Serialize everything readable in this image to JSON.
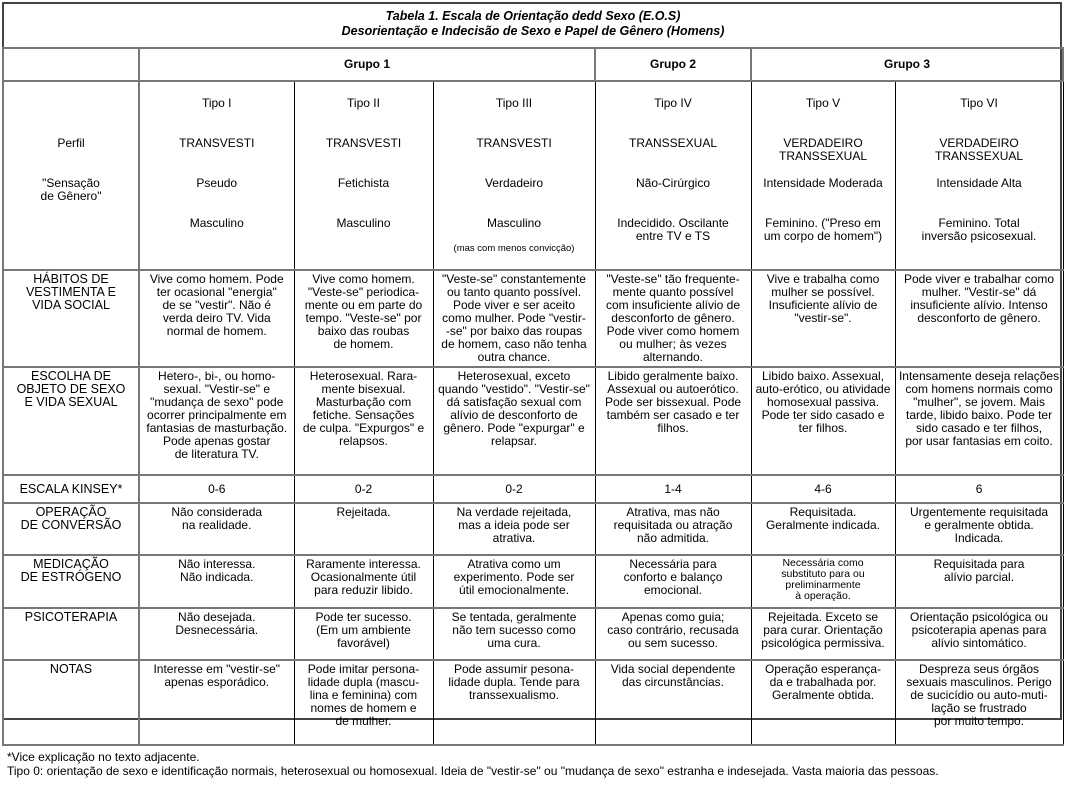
{
  "title": {
    "line1": "Tabela 1. Escala de Orientação dedd Sexo (E.O.S)",
    "line2": "Desorientação e Indecisão de Sexo e Papel de Gênero (Homens)"
  },
  "groups": [
    "Grupo 1",
    "Grupo 2",
    "Grupo 3"
  ],
  "profile": {
    "label1": "Perfil",
    "label2": "\"Sensação\nde Gênero\"",
    "types": [
      {
        "tipo": "Tipo I",
        "name": "TRANSVESTI",
        "sub": "Pseudo",
        "gender": "Masculino",
        "note": ""
      },
      {
        "tipo": "Tipo II",
        "name": "TRANSVESTI",
        "sub": "Fetichista",
        "gender": "Masculino",
        "note": ""
      },
      {
        "tipo": "Tipo III",
        "name": "TRANSVESTI",
        "sub": "Verdadeiro",
        "gender": "Masculino",
        "note": "(mas com menos convicção)"
      },
      {
        "tipo": "Tipo IV",
        "name": "TRANSSEXUAL",
        "sub": "Não-Cirúrgico",
        "gender": "Indecidido. Oscilante\nentre TV e TS",
        "note": ""
      },
      {
        "tipo": "Tipo V",
        "name": "VERDADEIRO\nTRANSSEXUAL",
        "sub": "Intensidade Moderada",
        "gender": "Feminino. (\"Preso em\num corpo de homem\")",
        "note": ""
      },
      {
        "tipo": "Tipo VI",
        "name": "VERDADEIRO\nTRANSSEXUAL",
        "sub": "Intensidade Alta",
        "gender": "Feminino. Total\ninversão psicosexual.",
        "note": ""
      }
    ]
  },
  "rows": [
    {
      "label": "HÁBITOS DE\nVESTIMENTA E\nVIDA SOCIAL",
      "cells": [
        "Vive como homem. Pode\nter ocasional \"energia\"\nde se \"vestir\". Não é\nverda deiro TV. Vida\nnormal de homem.",
        "Vive como homem.\n\"Veste-se\" periodica-\nmente ou em parte do\ntempo. \"Veste-se\" por\nbaixo das roubas\nde homem.",
        "\"Veste-se\" constantemente\nou tanto quanto possível.\nPode viver e ser aceito\ncomo mulher. Pode \"vestir-\n-se\" por baixo das roupas\nde homem, caso não tenha\noutra chance.",
        "\"Veste-se\" tão frequente-\nmente quanto possível\ncom insuficiente alívio de\ndesconforto de gênero.\nPode viver como homem\nou mulher; às vezes\nalternando.",
        "Vive e trabalha como\nmulher se possível.\nInsuficiente alívio de\n\"vestir-se\".",
        "Pode viver e trabalhar como\nmulher. \"Vestir-se\" dá\ninsuficiente alívio. Intenso\ndesconforto de gênero."
      ]
    },
    {
      "label": "ESCOLHA DE\nOBJETO DE SEXO\nE VIDA SEXUAL",
      "cells": [
        "Hetero-, bi-, ou homo-\nsexual. \"Vestir-se\" e\n\"mudança de sexo\" pode\nocorrer principalmente em\nfantasias de masturbação.\nPode apenas gostar\nde literatura TV.",
        "Heterosexual. Rara-\nmente bisexual.\nMasturbação com\nfetiche. Sensações\nde culpa. \"Expurgos\" e\nrelapsos.",
        "Heterosexual, exceto\nquando \"vestido\". \"Vestir-se\"\ndá satisfação sexual com\nalívio de desconforto de\ngênero. Pode \"expurgar\" e\nrelapsar.",
        "Libido geralmente baixo.\nAssexual ou autoerótico.\nPode ser bissexual. Pode\ntambém ser casado e ter\nfilhos.",
        "Libido baixo. Assexual,\nauto-erótico, ou atividade\nhomosexual passiva.\nPode ter sido casado e\nter filhos.",
        "Intensamente deseja relações\ncom homens normais como\n\"mulher\", se jovem. Mais\ntarde, libido baixo. Pode ter\nsido casado e ter filhos,\npor usar fantasias em coito."
      ]
    },
    {
      "label": "ESCALA KINSEY*",
      "cells": [
        "0-6",
        "0-2",
        "0-2",
        "1-4",
        "4-6",
        "6"
      ]
    },
    {
      "label": "OPERAÇÃO\nDE CONVERSÃO",
      "cells": [
        "Não considerada\nna realidade.",
        "Rejeitada.",
        "Na verdade rejeitada,\nmas a ideia pode ser\natrativa.",
        "Atrativa, mas não\nrequisitada ou atração\nnão admitida.",
        "Requisitada.\nGeralmente indicada.",
        "Urgentemente requisitada\ne geralmente obtida.\nIndicada."
      ]
    },
    {
      "label": "MEDICAÇÃO\nDE ESTRÓGENO",
      "cells": [
        "Não interessa.\nNão indicada.",
        "Raramente interessa.\nOcasionalmente útil\npara reduzir libido.",
        "Atrativa como um\nexperimento. Pode ser\nútil emocionalmente.",
        "Necessária para\nconforto e balanço\nemocional.",
        "Necessária como\nsubstituto para ou\npreliminarmente\nà operação.",
        "Requisitada para\nalívio parcial."
      ]
    },
    {
      "label": "PSICOTERAPIA",
      "cells": [
        "Não desejada.\nDesnecessária.",
        "Pode ter sucesso.\n(Em um ambiente\nfavorável)",
        "Se tentada, geralmente\nnão tem sucesso como\numa cura.",
        "Apenas como guia;\ncaso contrário, recusada\nou sem sucesso.",
        "Rejeitada. Exceto se\npara curar. Orientação\npsicológica permissiva.",
        "Orientação psicológica ou\npsicoterapia apenas para\nalívio sintomático."
      ]
    },
    {
      "label": "NOTAS",
      "cells": [
        "Interesse em \"vestir-se\"\napenas esporádico.",
        "Pode imitar persona-\nlidade dupla (mascu-\nlina e feminina) com\nnomes de homem e\nde mulher.",
        "Pode assumir pesona-\nlidade dupla. Tende para\ntranssexualismo.",
        "Vida social dependente\ndas circunstâncias.",
        "Operação esperança-\nda e trabalhada por.\nGeralmente obtida.",
        "Despreza seus órgãos\nsexuais masculinos. Perigo\nde sucicídio ou auto-muti-\nlação se frustrado\npor muito tempo."
      ]
    }
  ],
  "footnotes": [
    "*Vice explicação no texto adjacente.",
    "Tipo 0: orientação de sexo e identificação normais, heterosexual ou homosexual. Ideia de \"vestir-se\" ou \"mudança de sexo\" estranha e indesejada. Vasta maioria das pessoas."
  ]
}
